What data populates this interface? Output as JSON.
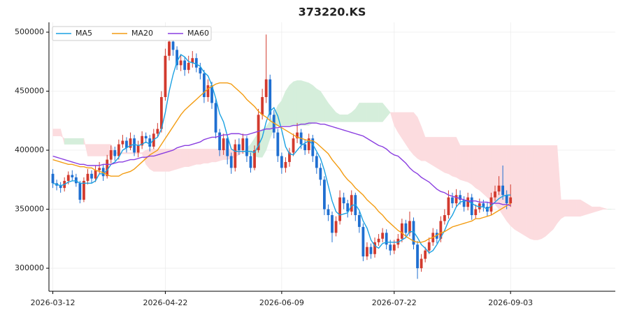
{
  "chart_data": {
    "type": "candlestick",
    "title": "373220.KS",
    "open": [
      380000,
      372000,
      370000,
      368000,
      374000,
      379000,
      377000,
      372000,
      358000,
      374000,
      380000,
      376000,
      383000,
      385000,
      378000,
      392000,
      400000,
      395000,
      405000,
      408000,
      402000,
      410000,
      398000,
      404000,
      412000,
      410000,
      403000,
      414000,
      418000,
      445000,
      480000,
      492000,
      485000,
      472000,
      476000,
      468000,
      474000,
      478000,
      470000,
      465000,
      445000,
      455000,
      440000,
      415000,
      400000,
      410000,
      395000,
      385000,
      405000,
      400000,
      410000,
      395000,
      385000,
      400000,
      430000,
      445000,
      460000,
      430000,
      415000,
      395000,
      385000,
      390000,
      398000,
      410000,
      415000,
      405000,
      400000,
      410000,
      395000,
      385000,
      375000,
      350000,
      345000,
      330000,
      340000,
      360000,
      355000,
      348000,
      362000,
      345000,
      335000,
      310000,
      318000,
      312000,
      322000,
      325000,
      330000,
      320000,
      315000,
      320000,
      325000,
      338000,
      330000,
      340000,
      320000,
      300000,
      308000,
      315000,
      322000,
      330000,
      325000,
      340000,
      345000,
      360000,
      355000,
      362000,
      358000,
      352000,
      360000,
      345000,
      350000,
      355000,
      352000,
      348000,
      360000,
      365000,
      370000,
      362000,
      355000
    ],
    "high": [
      384000,
      375000,
      373000,
      377000,
      382000,
      383000,
      380000,
      374000,
      377000,
      384000,
      383000,
      387000,
      390000,
      388000,
      396000,
      404000,
      403000,
      409000,
      413000,
      411000,
      415000,
      413000,
      408000,
      416000,
      415000,
      413000,
      418000,
      423000,
      450000,
      486000,
      498000,
      496000,
      488000,
      481000,
      479000,
      480000,
      484000,
      482000,
      474000,
      468000,
      460000,
      458000,
      443000,
      418000,
      414000,
      413000,
      398000,
      409000,
      410000,
      414000,
      412000,
      398000,
      404000,
      435000,
      452000,
      498000,
      464000,
      434000,
      418000,
      398000,
      394000,
      402000,
      414000,
      423000,
      418000,
      409000,
      414000,
      413000,
      398000,
      389000,
      378000,
      354000,
      348000,
      344000,
      366000,
      364000,
      358000,
      366000,
      364000,
      348000,
      338000,
      322000,
      321000,
      326000,
      329000,
      334000,
      333000,
      324000,
      324000,
      329000,
      342000,
      341000,
      348000,
      343000,
      323000,
      312000,
      318000,
      326000,
      334000,
      333000,
      344000,
      350000,
      366000,
      364000,
      367000,
      366000,
      361000,
      364000,
      363000,
      354000,
      359000,
      358000,
      356000,
      364000,
      370000,
      378000,
      387000,
      366000,
      371000
    ],
    "low": [
      368000,
      366000,
      364000,
      365000,
      371000,
      374000,
      369000,
      355000,
      356000,
      371000,
      372000,
      373000,
      380000,
      374000,
      376000,
      389000,
      391000,
      392000,
      402000,
      398000,
      400000,
      395000,
      394000,
      401000,
      406000,
      399000,
      401000,
      411000,
      415000,
      442000,
      476000,
      480000,
      468000,
      467000,
      463000,
      465000,
      470000,
      466000,
      460000,
      440000,
      441000,
      435000,
      410000,
      395000,
      396000,
      388000,
      380000,
      382000,
      396000,
      397000,
      390000,
      381000,
      383000,
      398000,
      426000,
      440000,
      425000,
      410000,
      390000,
      380000,
      381000,
      386000,
      395000,
      406000,
      401000,
      396000,
      397000,
      390000,
      380000,
      370000,
      345000,
      340000,
      322000,
      327000,
      337000,
      350000,
      343000,
      345000,
      340000,
      330000,
      306000,
      307000,
      308000,
      309000,
      319000,
      322000,
      316000,
      311000,
      312000,
      317000,
      322000,
      326000,
      327000,
      316000,
      291000,
      297000,
      305000,
      312000,
      319000,
      321000,
      322000,
      337000,
      342000,
      351000,
      352000,
      354000,
      348000,
      349000,
      341000,
      342000,
      347000,
      348000,
      344000,
      345000,
      357000,
      362000,
      358000,
      350000,
      352000
    ],
    "close": [
      372000,
      370000,
      368000,
      374000,
      379000,
      377000,
      372000,
      358000,
      374000,
      380000,
      376000,
      383000,
      385000,
      378000,
      392000,
      400000,
      395000,
      405000,
      408000,
      402000,
      410000,
      398000,
      404000,
      412000,
      410000,
      403000,
      414000,
      418000,
      445000,
      480000,
      492000,
      485000,
      472000,
      476000,
      468000,
      474000,
      478000,
      470000,
      465000,
      445000,
      455000,
      440000,
      415000,
      400000,
      410000,
      395000,
      385000,
      405000,
      400000,
      410000,
      395000,
      385000,
      400000,
      430000,
      445000,
      460000,
      430000,
      415000,
      395000,
      385000,
      390000,
      398000,
      410000,
      415000,
      405000,
      400000,
      410000,
      395000,
      385000,
      375000,
      350000,
      345000,
      330000,
      340000,
      360000,
      355000,
      348000,
      362000,
      345000,
      335000,
      310000,
      318000,
      312000,
      322000,
      325000,
      330000,
      320000,
      315000,
      320000,
      325000,
      338000,
      330000,
      340000,
      320000,
      300000,
      308000,
      315000,
      322000,
      330000,
      325000,
      340000,
      345000,
      360000,
      355000,
      362000,
      358000,
      352000,
      360000,
      345000,
      350000,
      355000,
      352000,
      348000,
      360000,
      365000,
      370000,
      362000,
      355000,
      360000
    ],
    "up_color": "#d23a2e",
    "down_color": "#1f6fd1",
    "series": [
      {
        "name": "MA5",
        "color": "#1ba1e2",
        "values": [
          372000,
          371000,
          370000,
          371000,
          373000,
          374000,
          374000,
          372000,
          372000,
          372000,
          372000,
          374000,
          380000,
          380000,
          383000,
          388000,
          390000,
          394000,
          400000,
          402000,
          404000,
          405000,
          404000,
          405000,
          407000,
          405000,
          409000,
          411000,
          418000,
          432000,
          450000,
          464000,
          475000,
          481000,
          479000,
          475000,
          474000,
          473000,
          471000,
          466000,
          463000,
          455000,
          444000,
          431000,
          424000,
          412000,
          401000,
          399000,
          399000,
          399000,
          399000,
          399000,
          398000,
          404000,
          411000,
          424000,
          433000,
          436000,
          429000,
          417000,
          403000,
          397000,
          396000,
          400000,
          404000,
          406000,
          408000,
          405000,
          399000,
          393000,
          383000,
          370000,
          357000,
          348000,
          345000,
          346000,
          347000,
          353000,
          354000,
          349000,
          340000,
          334000,
          324000,
          319000,
          317000,
          321000,
          322000,
          322000,
          322000,
          322000,
          324000,
          326000,
          331000,
          331000,
          326000,
          320000,
          317000,
          313000,
          315000,
          320000,
          326000,
          332000,
          340000,
          345000,
          352000,
          356000,
          357000,
          357000,
          355000,
          353000,
          352000,
          352000,
          350000,
          353000,
          356000,
          359000,
          361000,
          362000,
          362000
        ]
      },
      {
        "name": "MA20",
        "color": "#f39c12",
        "values": [
          392000,
          391000,
          390000,
          389000,
          388000,
          388000,
          387000,
          386000,
          386000,
          385000,
          385000,
          383000,
          382000,
          381000,
          379000,
          378000,
          378000,
          378000,
          380000,
          381000,
          382000,
          384000,
          387000,
          390000,
          393000,
          396000,
          398000,
          400000,
          405000,
          410000,
          415000,
          420000,
          425000,
          430000,
          434000,
          437000,
          440000,
          443000,
          446000,
          449000,
          452000,
          454000,
          456000,
          457000,
          457000,
          457000,
          456000,
          453000,
          450000,
          447000,
          443000,
          440000,
          437000,
          433000,
          430000,
          428000,
          425000,
          423000,
          421000,
          419000,
          417000,
          415000,
          413000,
          411000,
          410000,
          409000,
          408000,
          408000,
          406000,
          403000,
          400000,
          397000,
          392000,
          388000,
          384000,
          379000,
          375000,
          372000,
          368000,
          365000,
          362000,
          358000,
          355000,
          352000,
          348000,
          345000,
          341000,
          338000,
          335000,
          332000,
          330000,
          327000,
          325000,
          323000,
          322000,
          322000,
          323000,
          325000,
          326000,
          328000,
          330000,
          331000,
          333000,
          335000,
          336000,
          337000,
          338000,
          339000,
          340000,
          342000,
          342000,
          343000,
          344000,
          345000,
          347000,
          349000,
          351000,
          353000,
          355000
        ]
      },
      {
        "name": "MA60",
        "color": "#8a3ee0",
        "values": [
          395000,
          394000,
          393000,
          392000,
          391000,
          390000,
          389000,
          388000,
          388000,
          387000,
          387000,
          387000,
          387000,
          388000,
          388000,
          388000,
          389000,
          390000,
          390000,
          391000,
          392000,
          392000,
          393000,
          394000,
          394000,
          395000,
          395000,
          396000,
          397000,
          398000,
          399000,
          400000,
          402000,
          403000,
          404000,
          404000,
          405000,
          406000,
          407000,
          409000,
          410000,
          411000,
          411000,
          412000,
          413000,
          413000,
          414000,
          414000,
          414000,
          413000,
          413000,
          414000,
          415000,
          416000,
          417000,
          418000,
          418000,
          419000,
          419000,
          420000,
          420000,
          420000,
          421000,
          421000,
          422000,
          422000,
          423000,
          423000,
          423000,
          422000,
          422000,
          421000,
          420000,
          419000,
          418000,
          417000,
          416000,
          415000,
          414000,
          413000,
          412000,
          410000,
          408000,
          406000,
          404000,
          403000,
          401000,
          398000,
          396000,
          395000,
          392000,
          389000,
          385000,
          382000,
          380000,
          377000,
          375000,
          373000,
          370000,
          367000,
          365000,
          364000,
          362000,
          361000,
          360000,
          359000,
          358000,
          357000,
          357000,
          357000,
          356000,
          356000,
          356000,
          355000,
          355000,
          355000,
          354000,
          354000,
          353000
        ]
      }
    ],
    "cloud": {
      "up_color": "#d5eedb",
      "down_color": "#fcdcdf",
      "span_a": [
        412000,
        412000,
        412000,
        410000,
        410000,
        410000,
        410000,
        410000,
        410000,
        395000,
        395000,
        395000,
        395000,
        395000,
        395000,
        395000,
        397000,
        397000,
        397000,
        397000,
        397000,
        397000,
        397000,
        397000,
        388000,
        384000,
        382000,
        382000,
        382000,
        382000,
        382000,
        383000,
        384000,
        385000,
        386000,
        386000,
        387000,
        388000,
        388000,
        389000,
        389000,
        390000,
        390000,
        391000,
        392000,
        392000,
        393000,
        394000,
        396000,
        398000,
        402000,
        405000,
        410000,
        415000,
        418000,
        420000,
        425000,
        430000,
        438000,
        442000,
        450000,
        455000,
        458000,
        459000,
        459000,
        458000,
        457000,
        455000,
        452000,
        450000,
        445000,
        440000,
        436000,
        432000,
        430000,
        430000,
        430000,
        432000,
        435000,
        440000,
        440000,
        440000,
        440000,
        440000,
        440000,
        440000,
        436000,
        432000,
        421000,
        415000,
        410000,
        405000,
        400000,
        396000,
        393000,
        391000,
        391000,
        389000,
        387000,
        385000,
        383000,
        381000,
        380000,
        378000,
        377000,
        375000,
        374000,
        373000,
        371000,
        368000,
        366000,
        363000,
        360000,
        357000,
        354000,
        350000,
        345000,
        340000,
        336000,
        333000,
        331000,
        329000,
        327000,
        325000,
        324000,
        324000,
        325000,
        327000,
        330000,
        333000,
        338000,
        342000,
        344000,
        344000,
        344000,
        344000,
        344000,
        345000,
        346000,
        347000,
        348000,
        349000,
        350000,
        350000,
        350000
      ],
      "span_b": [
        418000,
        418000,
        418000,
        405000,
        405000,
        405000,
        405000,
        405000,
        405000,
        405000,
        405000,
        405000,
        405000,
        405000,
        405000,
        405000,
        398000,
        398000,
        398000,
        398000,
        398000,
        398000,
        398000,
        398000,
        400000,
        401000,
        401000,
        401000,
        401000,
        401000,
        401000,
        401000,
        401000,
        401000,
        401000,
        401000,
        401000,
        401000,
        401000,
        401000,
        401000,
        401000,
        401000,
        401000,
        401000,
        401000,
        401000,
        401000,
        400000,
        399000,
        397000,
        396000,
        395000,
        394000,
        394000,
        400000,
        410000,
        418000,
        421000,
        421000,
        421000,
        421000,
        421000,
        421000,
        421000,
        421000,
        421000,
        423000,
        424000,
        424000,
        424000,
        424000,
        424000,
        424000,
        424000,
        424000,
        424000,
        424000,
        424000,
        424000,
        424000,
        424000,
        424000,
        424000,
        424000,
        424000,
        428000,
        432000,
        432000,
        432000,
        432000,
        432000,
        432000,
        432000,
        428000,
        420000,
        411000,
        411000,
        411000,
        411000,
        411000,
        411000,
        411000,
        411000,
        411000,
        404000,
        404000,
        404000,
        404000,
        404000,
        404000,
        404000,
        404000,
        404000,
        404000,
        404000,
        404000,
        404000,
        404000,
        404000,
        404000,
        404000,
        404000,
        404000,
        404000,
        404000,
        404000,
        404000,
        404000,
        404000,
        404000,
        358000,
        358000,
        358000,
        358000,
        358000,
        358000,
        356000,
        354000,
        352000,
        352000,
        352000,
        351000,
        350000,
        350000
      ]
    },
    "xlim": [
      -1,
      145
    ],
    "xticks": [
      {
        "value": 0,
        "label": "2026-03-12"
      },
      {
        "value": 29,
        "label": "2026-04-22"
      },
      {
        "value": 59,
        "label": "2026-06-09"
      },
      {
        "value": 88,
        "label": "2026-07-22"
      },
      {
        "value": 118,
        "label": "2026-09-03"
      }
    ],
    "ylim": [
      280500,
      508300
    ],
    "yticks": [
      300000,
      350000,
      400000,
      450000,
      500000
    ],
    "grid": true,
    "legend": "upper left"
  }
}
